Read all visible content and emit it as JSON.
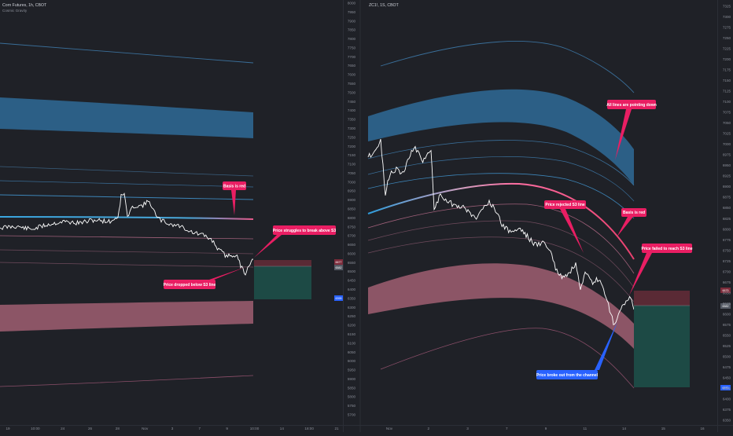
{
  "left_panel": {
    "title": "Corn Futures, 1h, CBOT",
    "subtitle": "Cosmic Gravity",
    "y_ticks": [
      "8000",
      "7950",
      "7900",
      "7850",
      "7800",
      "7750",
      "7700",
      "7650",
      "7600",
      "7550",
      "7500",
      "7450",
      "7400",
      "7350",
      "7300",
      "7250",
      "7200",
      "7150",
      "7100",
      "7050",
      "7000",
      "6950",
      "6900",
      "6850",
      "6800",
      "6750",
      "6700",
      "6650",
      "6600",
      "6550",
      "6500",
      "6450",
      "6400",
      "6350",
      "6300",
      "6250",
      "6200",
      "6150",
      "6100",
      "6050",
      "6000",
      "5950",
      "5900",
      "5850",
      "5800",
      "5750",
      "5700"
    ],
    "x_ticks": [
      "19",
      "10:00",
      "24",
      "26",
      "28",
      "Nov",
      "3",
      "7",
      "9",
      "10:00",
      "14",
      "18:00",
      "21"
    ],
    "price_tag": "6677",
    "price_tag2": "6582",
    "level_tag": "6395",
    "annotations": {
      "basis_red": "Basis is red",
      "struggles": "Price struggles to break above S3",
      "dropped": "Price dropped below S3 line"
    }
  },
  "right_panel": {
    "title": "ZC1!, 1S, CBOT",
    "y_ticks": [
      "7325",
      "7300",
      "7275",
      "7250",
      "7225",
      "7200",
      "7175",
      "7150",
      "7125",
      "7100",
      "7075",
      "7050",
      "7025",
      "7000",
      "6975",
      "6950",
      "6925",
      "6900",
      "6875",
      "6850",
      "6825",
      "6800",
      "6775",
      "6750",
      "6725",
      "6700",
      "6675",
      "6650",
      "6625",
      "6600",
      "6575",
      "6550",
      "6525",
      "6500",
      "6475",
      "6450",
      "6425",
      "6400",
      "6375",
      "6350"
    ],
    "x_ticks": [
      "Nov",
      "2",
      "3",
      "7",
      "9",
      "11",
      "14",
      "15",
      "16"
    ],
    "price_tag": "6675",
    "price_tag2": "6582",
    "level_tag": "6375",
    "annotations": {
      "lines_down": "All lines are pointing down",
      "rejected": "Price rejected S3 line",
      "basis_red": "Basis is red",
      "failed": "Price failed to reach S3 line",
      "broke_out": "Price broke out from the channel"
    }
  },
  "colors": {
    "background": "#1f2127",
    "upper_band": "#2c5f86",
    "lower_band": "#8c5566",
    "basis_blue": "#2d9cdb",
    "basis_red": "#e85a8c",
    "annotation_pink": "#e91e63",
    "annotation_blue": "#2962ff",
    "price": "#ffffff",
    "stop_zone": "#5a2a35",
    "target_zone": "#1d4a45",
    "level_tag": "#2962ff"
  }
}
